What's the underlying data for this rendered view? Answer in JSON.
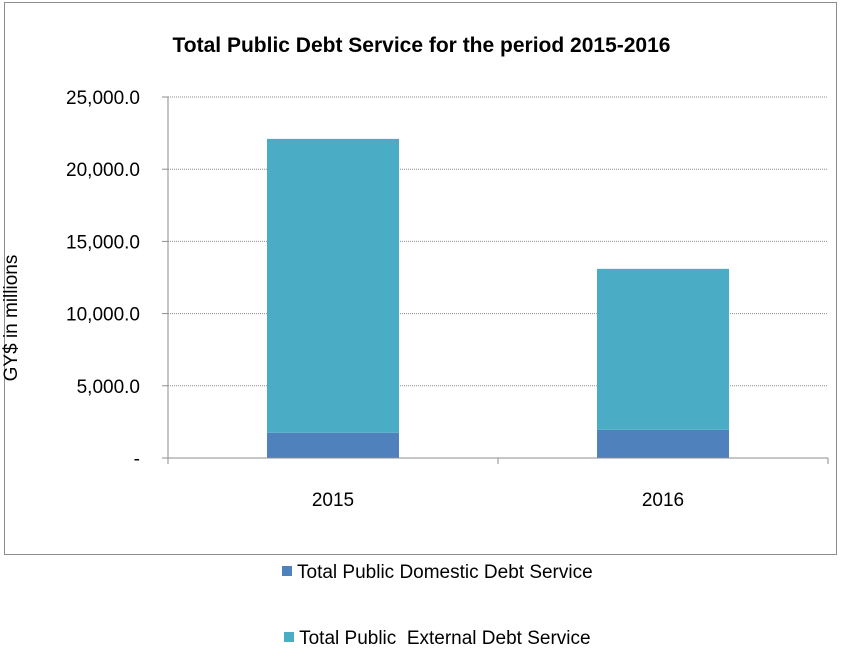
{
  "chart_data": {
    "type": "bar",
    "stacked": true,
    "title": "Total Public Debt Service for the period 2015-2016",
    "xlabel": "",
    "ylabel": "GY$ in millions",
    "categories": [
      "2015",
      "2016"
    ],
    "series": [
      {
        "name": "Total Public Domestic Debt Service",
        "values": [
          1750,
          1950
        ],
        "color": "#4f81bd"
      },
      {
        "name": "Total Public  External Debt Service",
        "values": [
          20350,
          11150
        ],
        "color": "#4bacc6"
      }
    ],
    "ylim": [
      0,
      25000
    ],
    "yticks": [
      0,
      5000,
      10000,
      15000,
      20000,
      25000
    ],
    "ytick_labels": [
      "-",
      "5,000.0",
      "10,000.0",
      "15,000.0",
      "20,000.0",
      "25,000.0"
    ],
    "grid": true,
    "legend_position": "bottom"
  }
}
